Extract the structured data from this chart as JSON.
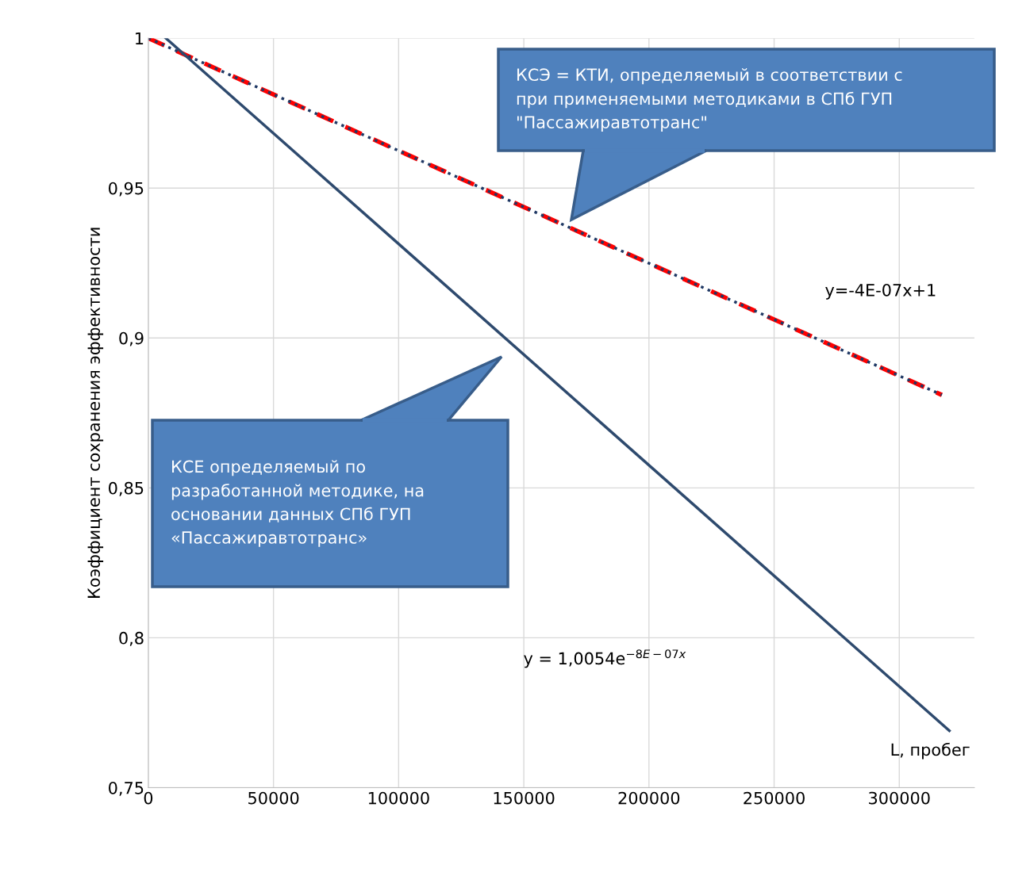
{
  "chart_data": {
    "type": "line",
    "ylabel": "Коэффициент сохранения эффективности",
    "xlabel": "L, пробег",
    "xlim": [
      0,
      330000
    ],
    "xticks": [
      0,
      50000,
      100000,
      150000,
      200000,
      250000,
      300000
    ],
    "ylim": [
      0.75,
      1.0
    ],
    "yticks": [
      {
        "value": 0.75,
        "label": "0,75"
      },
      {
        "value": 0.8,
        "label": "0,8"
      },
      {
        "value": 0.85,
        "label": "0,85"
      },
      {
        "value": 0.9,
        "label": "0,9"
      },
      {
        "value": 0.95,
        "label": "0,95"
      },
      {
        "value": 1.0,
        "label": "1"
      }
    ],
    "grid": true,
    "legend": false,
    "series": [
      {
        "color": "#ff0000",
        "line_style": "dashed",
        "x": [
          0,
          317000
        ],
        "values": [
          1.0,
          0.881
        ]
      },
      {
        "color": "#1f3864",
        "line_style": "dotted",
        "x": [
          0,
          317000
        ],
        "values": [
          1.0,
          0.881
        ]
      },
      {
        "color": "#2e4a6e",
        "line_style": "solid",
        "x": [
          7000,
          320000
        ],
        "values": [
          1.0,
          0.769
        ]
      }
    ],
    "annotations": [
      "КСЭ = КТИ, определяемый в соответствии с\nпри применяемыми методиками в СПб ГУП\n\"Пассажиравтотранс\"",
      "КСЕ определяемый по\nразработанной методике, на\nосновании данных СПб ГУП\n«Пассажиравтотранс»",
      "y=-4E-07x+1",
      "y = 1,0054e$^{−8E−07x}$"
    ]
  }
}
